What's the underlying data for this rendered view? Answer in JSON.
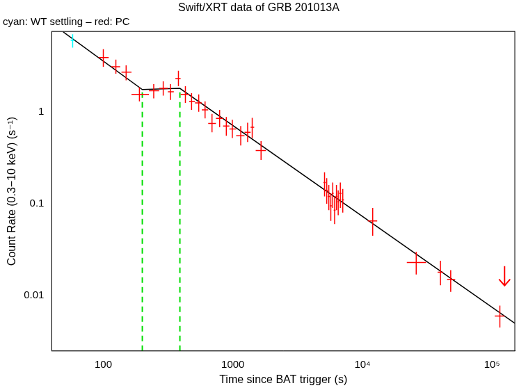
{
  "chart_data": {
    "type": "scatter",
    "title": "Swift/XRT data of GRB 201013A",
    "subtitle": "cyan: WT settling – red: PC",
    "x_label": "Time since BAT trigger (s)",
    "y_label": "Count Rate (0.3−10 keV) (s⁻¹)",
    "log": true,
    "grid": false,
    "xlim": [
      40,
      150000
    ],
    "ylim": [
      0.0025,
      7.5
    ],
    "xticks": [
      100,
      1000,
      {
        "value": 10000,
        "label": "10⁴"
      },
      {
        "value": 100000,
        "label": "10⁵"
      }
    ],
    "yticks": [
      0.01,
      0.1,
      1
    ],
    "series": [
      {
        "type": "scatter",
        "marker": "cross",
        "color": "#00ffff",
        "x": [
          58
        ],
        "x_low": [
          56
        ],
        "x_high": [
          60
        ],
        "values": [
          6.0
        ],
        "y_low": [
          5.0
        ],
        "y_high": [
          7.0
        ]
      },
      {
        "type": "scatter",
        "marker": "cross",
        "color": "#ff0000",
        "x": [
          100,
          125,
          150,
          190,
          245,
          290,
          330,
          380,
          430,
          480,
          545,
          610,
          690,
          790,
          890,
          990,
          1150,
          1300,
          1410,
          1650,
          5100,
          5300,
          5500,
          5700,
          5900,
          6100,
          6300,
          6500,
          6750,
          7050,
          12000,
          26000,
          40000,
          48000,
          115000
        ],
        "x_low": [
          92,
          115,
          138,
          165,
          225,
          270,
          315,
          360,
          395,
          460,
          510,
          575,
          645,
          740,
          840,
          940,
          1060,
          1230,
          1370,
          1500,
          5000,
          5200,
          5400,
          5600,
          5800,
          6000,
          6200,
          6400,
          6600,
          6900,
          11000,
          22000,
          38000,
          45000,
          105000
        ],
        "x_high": [
          110,
          135,
          165,
          225,
          270,
          315,
          350,
          395,
          460,
          510,
          575,
          645,
          740,
          840,
          940,
          1060,
          1230,
          1370,
          1460,
          1800,
          5200,
          5400,
          5600,
          5800,
          6000,
          6200,
          6400,
          6600,
          6900,
          7200,
          13000,
          31000,
          42000,
          52000,
          125000
        ],
        "values": [
          3.9,
          3.1,
          2.7,
          1.55,
          1.7,
          1.8,
          1.65,
          2.3,
          1.55,
          1.3,
          1.25,
          1.05,
          0.75,
          0.85,
          0.7,
          0.65,
          0.55,
          0.6,
          0.68,
          0.38,
          0.17,
          0.14,
          0.12,
          0.095,
          0.13,
          0.085,
          0.12,
          0.105,
          0.13,
          0.11,
          0.065,
          0.023,
          0.018,
          0.015,
          0.006
        ],
        "y_low": [
          3.1,
          2.6,
          2.2,
          1.3,
          1.4,
          1.5,
          1.35,
          1.9,
          1.25,
          1.05,
          1.0,
          0.85,
          0.6,
          0.68,
          0.55,
          0.52,
          0.43,
          0.47,
          0.52,
          0.3,
          0.12,
          0.1,
          0.085,
          0.065,
          0.09,
          0.06,
          0.085,
          0.075,
          0.09,
          0.08,
          0.045,
          0.017,
          0.013,
          0.011,
          0.0045
        ],
        "y_high": [
          4.8,
          3.7,
          3.2,
          1.85,
          2.0,
          2.15,
          2.0,
          2.8,
          1.9,
          1.6,
          1.55,
          1.3,
          0.95,
          1.05,
          0.88,
          0.82,
          0.7,
          0.76,
          0.86,
          0.48,
          0.22,
          0.19,
          0.16,
          0.13,
          0.17,
          0.12,
          0.16,
          0.14,
          0.17,
          0.145,
          0.09,
          0.03,
          0.024,
          0.019,
          0.0078
        ]
      },
      {
        "type": "scatter",
        "marker": "arrow",
        "color": "#ff0000",
        "x": [
          125000
        ],
        "values": [
          0.021
        ]
      },
      {
        "type": "line",
        "line_style": "solid",
        "color": "#000000",
        "x": [
          49,
          200,
          390,
          150000
        ],
        "values": [
          7.4,
          1.75,
          1.8,
          0.005
        ]
      },
      {
        "type": "line",
        "line_style": "dashed",
        "color": "#00dd00",
        "x": [
          200,
          200
        ],
        "values": [
          0.0025,
          1.75
        ]
      },
      {
        "type": "line",
        "line_style": "dashed",
        "color": "#00dd00",
        "x": [
          390,
          390
        ],
        "values": [
          0.0025,
          1.8
        ]
      }
    ]
  }
}
